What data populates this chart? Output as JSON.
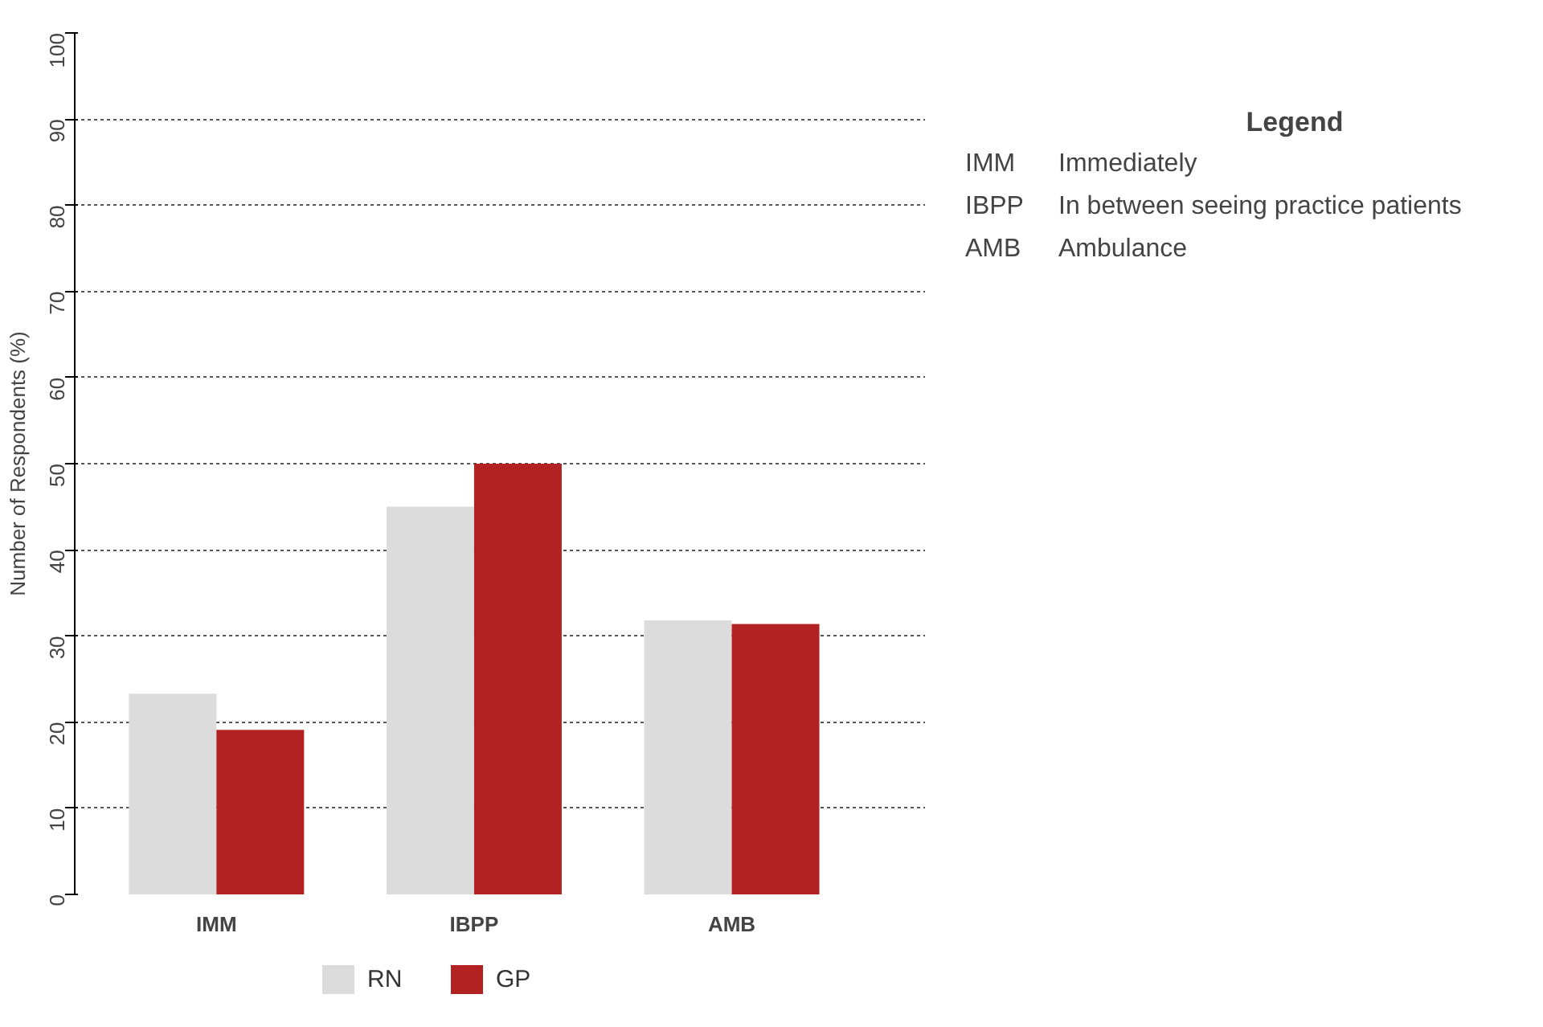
{
  "chart_data": {
    "type": "bar",
    "ylabel": "Number of Respondents (%)",
    "categories": [
      "IMM",
      "IBPP",
      "AMB"
    ],
    "series": [
      {
        "name": "RN",
        "color": "#dcdcdc",
        "values": [
          23.3,
          45,
          31.8
        ]
      },
      {
        "name": "GP",
        "color": "#b22222",
        "values": [
          19.1,
          50,
          31.4
        ]
      }
    ],
    "ylim": [
      0,
      100
    ],
    "yticks": [
      0,
      10,
      20,
      30,
      40,
      50,
      60,
      70,
      80,
      90,
      100
    ],
    "grid": "y",
    "legend": "bottom",
    "annotations": [
      "Legend",
      "IMM",
      "Immediately",
      "IBPP",
      "In between seeing practice patients",
      "AMB",
      "Ambulance"
    ]
  }
}
